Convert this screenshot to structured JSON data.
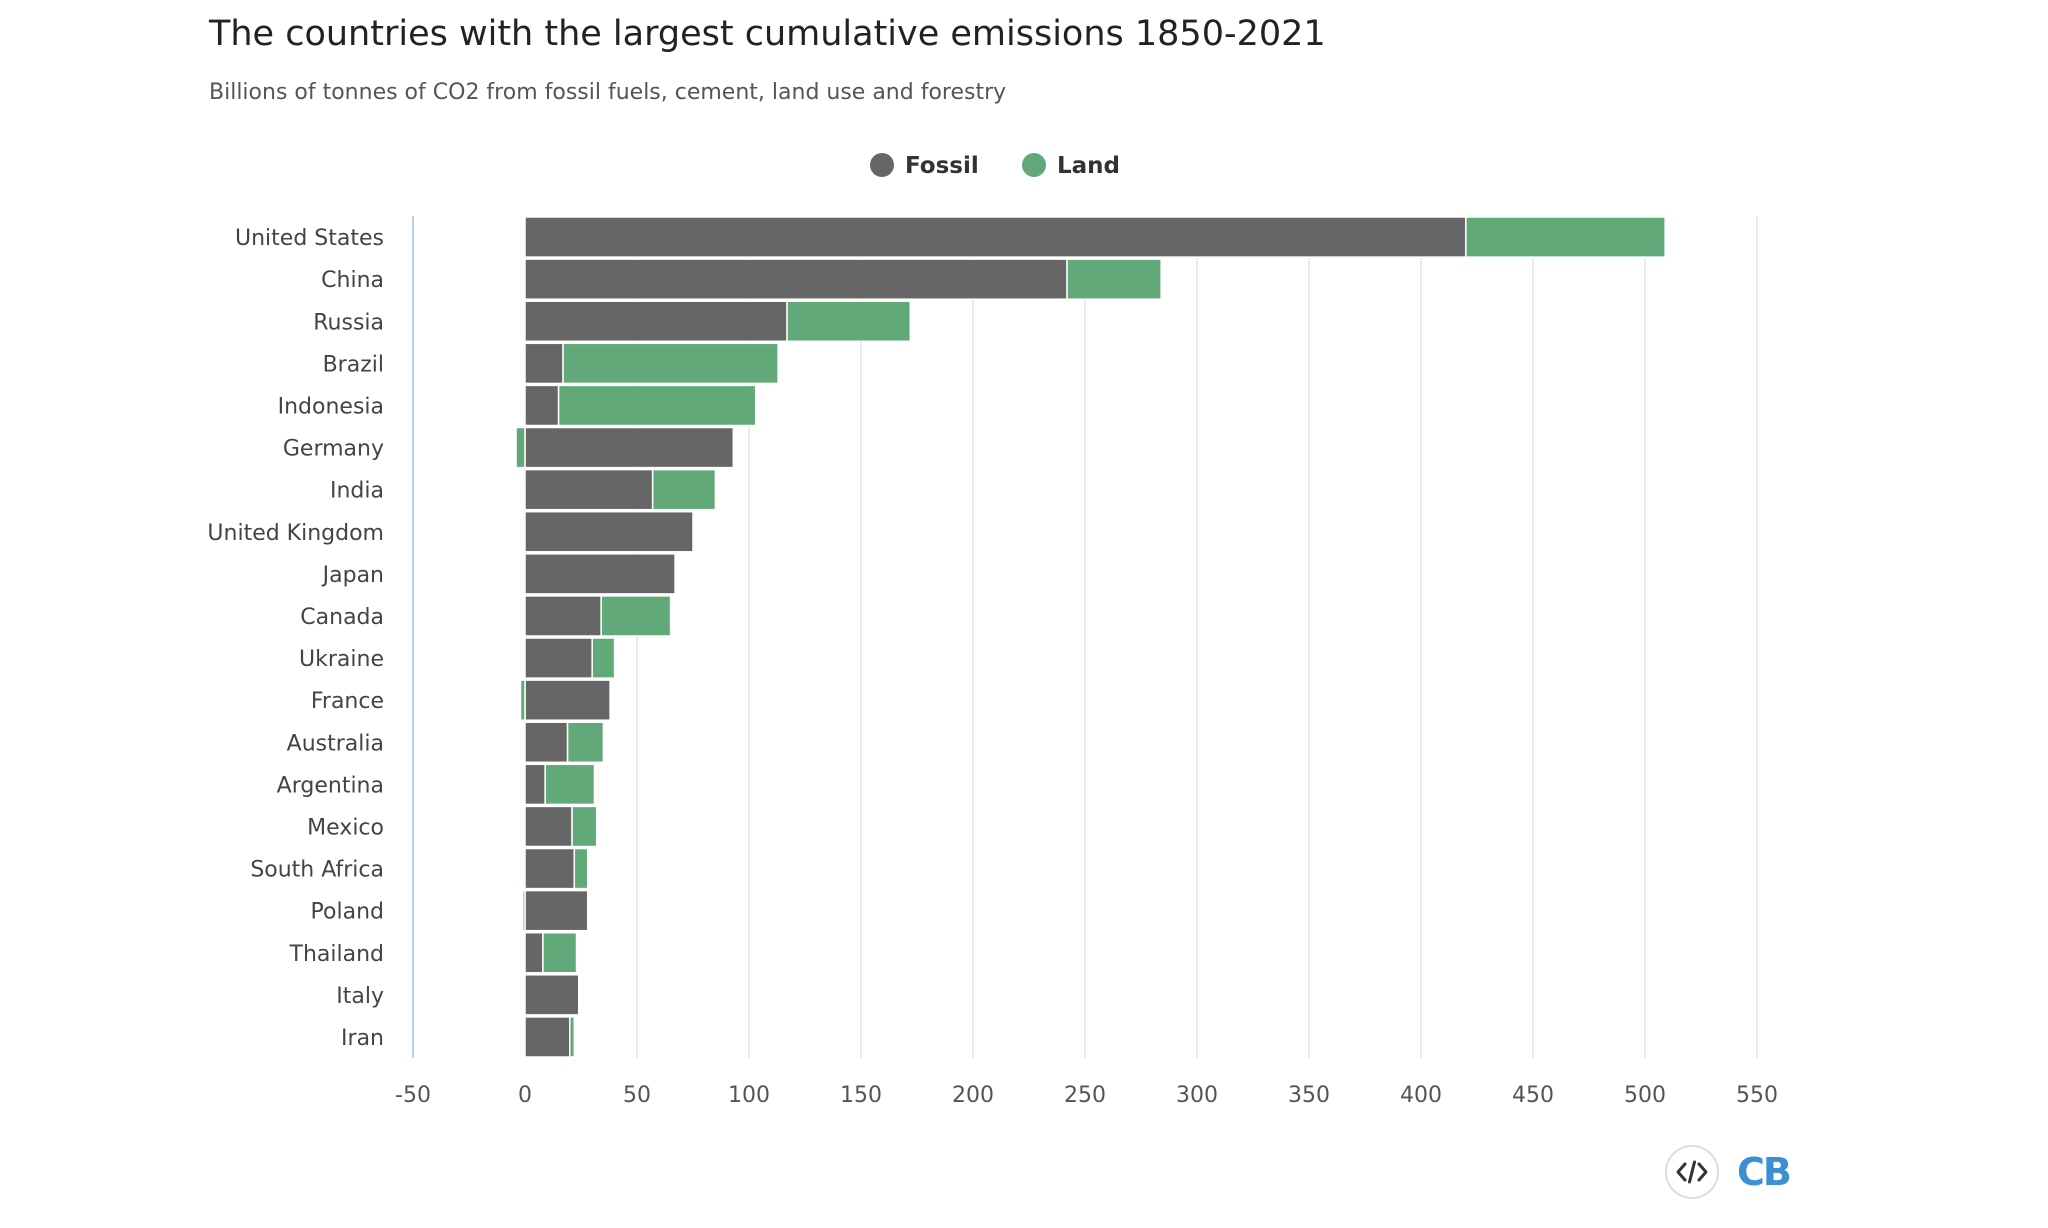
{
  "chart_data": {
    "type": "bar",
    "orientation": "horizontal",
    "stacked": true,
    "title": "The countries with the largest cumulative emissions 1850-2021",
    "subtitle": "Billions of tonnes of CO2 from fossil fuels, cement, land use and forestry",
    "categories": [
      "United States",
      "China",
      "Russia",
      "Brazil",
      "Indonesia",
      "Germany",
      "India",
      "United Kingdom",
      "Japan",
      "Canada",
      "Ukraine",
      "France",
      "Australia",
      "Argentina",
      "Mexico",
      "South Africa",
      "Poland",
      "Thailand",
      "Italy",
      "Iran"
    ],
    "series": [
      {
        "name": "Fossil",
        "color": "#666666",
        "values": [
          420,
          242,
          117,
          17,
          15,
          93,
          57,
          75,
          67,
          34,
          30,
          38,
          19,
          9,
          21,
          22,
          28,
          8,
          24,
          20
        ]
      },
      {
        "name": "Land",
        "color": "#62a97a",
        "values": [
          89,
          42,
          55,
          96,
          88,
          -4,
          28,
          0,
          0,
          31,
          10,
          -2,
          16,
          22,
          11,
          6,
          -1,
          15,
          0,
          2
        ]
      }
    ],
    "xlim": [
      -50,
      550
    ],
    "xticks": [
      -50,
      0,
      50,
      100,
      150,
      200,
      250,
      300,
      350,
      400,
      450,
      500,
      550
    ],
    "grid": true,
    "legend_position": "top-center"
  },
  "footer": {
    "embed_icon": "code-embed-icon",
    "logo_text": "CB",
    "logo_color": "#3b8fd3"
  }
}
